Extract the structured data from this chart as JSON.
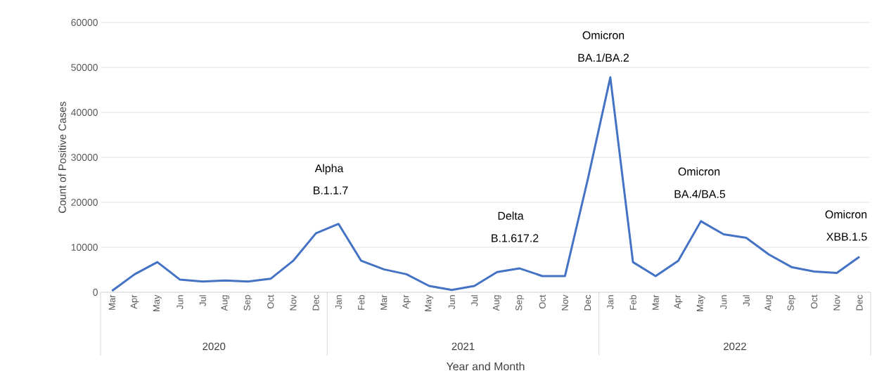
{
  "chart_data": {
    "type": "line",
    "xlabel": "Year and Month",
    "ylabel": "Count of Positive Cases",
    "grid": "y",
    "line_style": "solid",
    "x": [
      "2020-03",
      "2020-04",
      "2020-05",
      "2020-06",
      "2020-07",
      "2020-08",
      "2020-09",
      "2020-10",
      "2020-11",
      "2020-12",
      "2021-01",
      "2021-02",
      "2021-03",
      "2021-04",
      "2021-05",
      "2021-06",
      "2021-07",
      "2021-08",
      "2021-09",
      "2021-10",
      "2021-11",
      "2021-12",
      "2022-01",
      "2022-02",
      "2022-03",
      "2022-04",
      "2022-05",
      "2022-06",
      "2022-07",
      "2022-08",
      "2022-09",
      "2022-10",
      "2022-11",
      "2022-12"
    ],
    "xlim": [
      "2020-02-16",
      "2022-12-16"
    ],
    "xticks": [
      {
        "value": "2020-03",
        "label": "Mar"
      },
      {
        "value": "2020-04",
        "label": "Apr"
      },
      {
        "value": "2020-05",
        "label": "May"
      },
      {
        "value": "2020-06",
        "label": "Jun"
      },
      {
        "value": "2020-07",
        "label": "Jul"
      },
      {
        "value": "2020-08",
        "label": "Aug"
      },
      {
        "value": "2020-09",
        "label": "Sep"
      },
      {
        "value": "2020-10",
        "label": "Oct"
      },
      {
        "value": "2020-11",
        "label": "Nov"
      },
      {
        "value": "2020-12",
        "label": "Dec"
      },
      {
        "value": "2021-01",
        "label": "Jan"
      },
      {
        "value": "2021-02",
        "label": "Feb"
      },
      {
        "value": "2021-03",
        "label": "Mar"
      },
      {
        "value": "2021-04",
        "label": "Apr"
      },
      {
        "value": "2021-05",
        "label": "May"
      },
      {
        "value": "2021-06",
        "label": "Jun"
      },
      {
        "value": "2021-07",
        "label": "Jul"
      },
      {
        "value": "2021-08",
        "label": "Aug"
      },
      {
        "value": "2021-09",
        "label": "Sep"
      },
      {
        "value": "2021-10",
        "label": "Oct"
      },
      {
        "value": "2021-11",
        "label": "Nov"
      },
      {
        "value": "2021-12",
        "label": "Dec"
      },
      {
        "value": "2022-01",
        "label": "Jan"
      },
      {
        "value": "2022-02",
        "label": "Feb"
      },
      {
        "value": "2022-03",
        "label": "Mar"
      },
      {
        "value": "2022-04",
        "label": "Apr"
      },
      {
        "value": "2022-05",
        "label": "May"
      },
      {
        "value": "2022-06",
        "label": "Jun"
      },
      {
        "value": "2022-07",
        "label": "Jul"
      },
      {
        "value": "2022-08",
        "label": "Aug"
      },
      {
        "value": "2022-09",
        "label": "Sep"
      },
      {
        "value": "2022-10",
        "label": "Oct"
      },
      {
        "value": "2022-11",
        "label": "Nov"
      },
      {
        "value": "2022-12",
        "label": "Dec"
      }
    ],
    "ylim": [
      0,
      60000
    ],
    "yticks": [
      0,
      10000,
      20000,
      30000,
      40000,
      50000,
      60000
    ],
    "series": [
      {
        "color": "#4472c4",
        "values": [
          300,
          4000,
          6700,
          2800,
          2400,
          2600,
          2400,
          3000,
          7000,
          13100,
          15200,
          7000,
          5100,
          4000,
          1400,
          500,
          1400,
          4500,
          5300,
          3600,
          3600,
          25000,
          47800,
          6700,
          3600,
          7000,
          15800,
          12900,
          12100,
          8400,
          5600,
          4600,
          4300,
          7900
        ]
      }
    ],
    "annotations": [
      "Alpha",
      "B.1.1.7",
      "Delta",
      "B.1.617.2",
      "Omicron",
      "BA.1/BA.2",
      "Omicron",
      "BA.4/BA.5",
      "Omicron",
      "XBB.1.5",
      "2020",
      "2021",
      "2022"
    ]
  }
}
